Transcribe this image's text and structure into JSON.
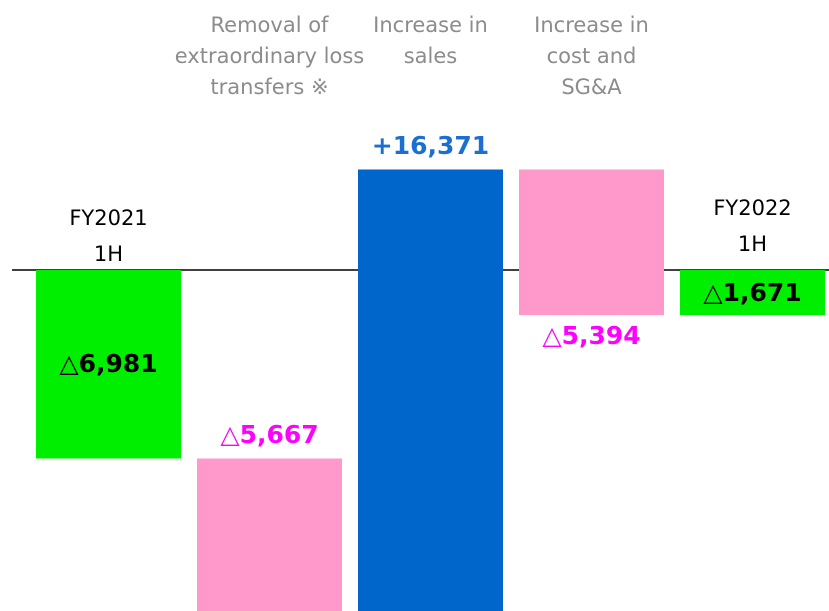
{
  "chart_data": {
    "type": "waterfall",
    "categories": [
      "FY2021 1H",
      "Removal of extraordinary loss transfers ※",
      "Increase in sales",
      "Increase in cost and SG&A",
      "FY2022 1H"
    ],
    "kinds": [
      "total",
      "delta",
      "delta",
      "delta",
      "total"
    ],
    "values": [
      -6981,
      -5667,
      16371,
      -5394,
      -1671
    ],
    "value_labels": [
      "△6,981",
      "△5,667",
      "+16,371",
      "△5,394",
      "△1,671"
    ],
    "colors": [
      "#00ee00",
      "#ff99cc",
      "#0066cc",
      "#ff99cc",
      "#00ee00"
    ],
    "label_colors": [
      "#000000",
      "#ff00ff",
      "#1a6fd0",
      "#ff00ff",
      "#000000"
    ],
    "category_colors": [
      "#000000",
      "#8c8c8c",
      "#8c8c8c",
      "#8c8c8c",
      "#000000"
    ],
    "ylim": [
      -12500,
      4000
    ]
  }
}
